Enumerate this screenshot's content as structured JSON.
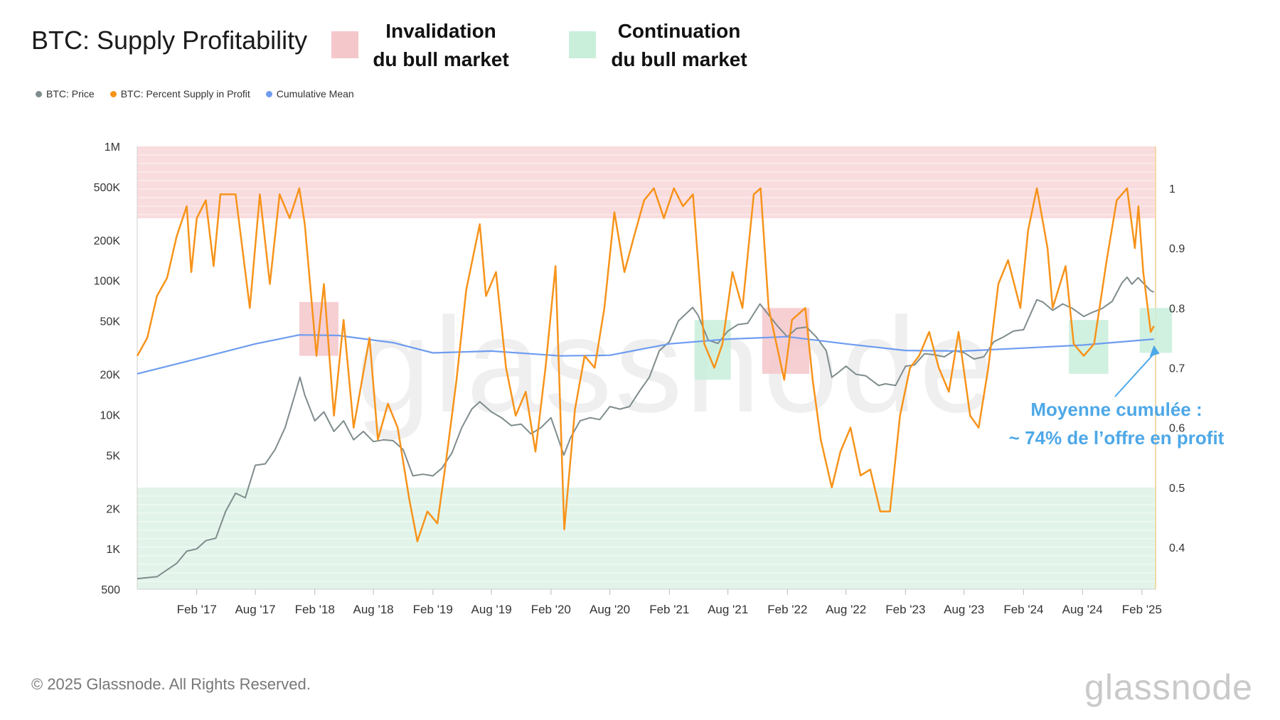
{
  "title": "BTC: Supply Profitability",
  "key": {
    "invalidation_line1": "Invalidation",
    "invalidation_line2": "du bull market",
    "invalidation_color": "#f4c7cb",
    "continuation_line1": "Continuation",
    "continuation_line2": "du bull market",
    "continuation_color": "#c9efdb"
  },
  "legend": [
    {
      "label": "BTC: Price",
      "color": "#7f8c8d"
    },
    {
      "label": "BTC: Percent Supply in Profit",
      "color": "#f7931a"
    },
    {
      "label": "Cumulative Mean",
      "color": "#6e9cf0"
    }
  ],
  "annotation": {
    "line1": "Moyenne cumulée :",
    "line2": "~ 74% de l’offre en profit"
  },
  "footer": "© 2025 Glassnode. All Rights Reserved.",
  "brand": "glassnode",
  "chart_data": {
    "type": "line",
    "x_range": [
      "2016-08-01",
      "2025-03-15"
    ],
    "x_ticks": [
      "Feb '17",
      "Aug '17",
      "Feb '18",
      "Aug '18",
      "Feb '19",
      "Aug '19",
      "Feb '20",
      "Aug '20",
      "Feb '21",
      "Aug '21",
      "Feb '22",
      "Aug '22",
      "Feb '23",
      "Aug '23",
      "Feb '24",
      "Aug '24",
      "Feb '25"
    ],
    "x_tick_dates": [
      "2017-02-01",
      "2017-08-01",
      "2018-02-01",
      "2018-08-01",
      "2019-02-01",
      "2019-08-01",
      "2020-02-01",
      "2020-08-01",
      "2021-02-01",
      "2021-08-01",
      "2022-02-01",
      "2022-08-01",
      "2023-02-01",
      "2023-08-01",
      "2024-02-01",
      "2024-08-01",
      "2025-02-01"
    ],
    "y_left": {
      "scale": "log",
      "range": [
        500,
        1000000
      ],
      "ticks": [
        500,
        1000,
        2000,
        5000,
        10000,
        20000,
        50000,
        100000,
        200000,
        500000,
        1000000
      ],
      "tick_labels": [
        "500",
        "1K",
        "2K",
        "5K",
        "10K",
        "20K",
        "50K",
        "100K",
        "200K",
        "500K",
        "1M"
      ]
    },
    "y_right": {
      "scale": "linear",
      "range": [
        0.33,
        1.07
      ],
      "ticks": [
        0.4,
        0.5,
        0.6,
        0.7,
        0.8,
        0.9,
        1
      ],
      "tick_labels": [
        "0.4",
        "0.5",
        "0.6",
        "0.7",
        "0.8",
        "0.9",
        "1"
      ]
    },
    "bands": [
      {
        "axis": "right",
        "from": 0.95,
        "to": 1.07,
        "color": "#f9dcde"
      },
      {
        "axis": "right",
        "from": 0.33,
        "to": 0.5,
        "color": "#e2f4ea"
      }
    ],
    "highlight_boxes": [
      {
        "kind": "invalidation",
        "x_from": "2017-12-15",
        "x_to": "2018-04-15",
        "y_from": 0.72,
        "y_to": 0.81
      },
      {
        "kind": "continuation",
        "x_from": "2021-04-20",
        "x_to": "2021-08-10",
        "y_from": 0.68,
        "y_to": 0.78
      },
      {
        "kind": "invalidation",
        "x_from": "2021-11-15",
        "x_to": "2022-04-10",
        "y_from": 0.69,
        "y_to": 0.8
      },
      {
        "kind": "continuation",
        "x_from": "2024-06-20",
        "x_to": "2024-10-20",
        "y_from": 0.69,
        "y_to": 0.78
      },
      {
        "kind": "continuation",
        "x_from": "2025-01-25",
        "x_to": "2025-05-05",
        "y_from": 0.725,
        "y_to": 0.8
      }
    ],
    "series": [
      {
        "name": "BTC: Price",
        "axis": "left",
        "color": "#7f8c8d",
        "points": [
          [
            "2016-08-01",
            600
          ],
          [
            "2016-10-01",
            620
          ],
          [
            "2016-12-01",
            780
          ],
          [
            "2017-01-01",
            960
          ],
          [
            "2017-02-01",
            1000
          ],
          [
            "2017-03-01",
            1150
          ],
          [
            "2017-04-01",
            1200
          ],
          [
            "2017-05-01",
            1900
          ],
          [
            "2017-06-01",
            2600
          ],
          [
            "2017-07-01",
            2400
          ],
          [
            "2017-08-01",
            4200
          ],
          [
            "2017-09-01",
            4300
          ],
          [
            "2017-10-01",
            5500
          ],
          [
            "2017-11-01",
            8000
          ],
          [
            "2017-12-01",
            14000
          ],
          [
            "2017-12-17",
            19000
          ],
          [
            "2018-01-01",
            14000
          ],
          [
            "2018-02-01",
            9000
          ],
          [
            "2018-03-01",
            10500
          ],
          [
            "2018-04-01",
            7500
          ],
          [
            "2018-05-01",
            9000
          ],
          [
            "2018-06-01",
            6500
          ],
          [
            "2018-07-01",
            7500
          ],
          [
            "2018-08-01",
            6300
          ],
          [
            "2018-09-01",
            6500
          ],
          [
            "2018-10-01",
            6400
          ],
          [
            "2018-11-01",
            5500
          ],
          [
            "2018-12-01",
            3500
          ],
          [
            "2019-01-01",
            3600
          ],
          [
            "2019-02-01",
            3500
          ],
          [
            "2019-03-01",
            4000
          ],
          [
            "2019-04-01",
            5200
          ],
          [
            "2019-05-01",
            8000
          ],
          [
            "2019-06-01",
            11000
          ],
          [
            "2019-06-26",
            12500
          ],
          [
            "2019-08-01",
            10500
          ],
          [
            "2019-09-01",
            9500
          ],
          [
            "2019-10-01",
            8300
          ],
          [
            "2019-11-01",
            8500
          ],
          [
            "2019-12-01",
            7200
          ],
          [
            "2020-01-01",
            8000
          ],
          [
            "2020-02-01",
            9500
          ],
          [
            "2020-03-12",
            5000
          ],
          [
            "2020-04-01",
            6700
          ],
          [
            "2020-05-01",
            9000
          ],
          [
            "2020-06-01",
            9500
          ],
          [
            "2020-07-01",
            9200
          ],
          [
            "2020-08-01",
            11500
          ],
          [
            "2020-09-01",
            11000
          ],
          [
            "2020-10-01",
            11500
          ],
          [
            "2020-11-01",
            15000
          ],
          [
            "2020-12-01",
            19000
          ],
          [
            "2021-01-01",
            30000
          ],
          [
            "2021-02-01",
            35000
          ],
          [
            "2021-03-01",
            50000
          ],
          [
            "2021-04-14",
            63000
          ],
          [
            "2021-05-01",
            55000
          ],
          [
            "2021-06-01",
            36000
          ],
          [
            "2021-07-01",
            34000
          ],
          [
            "2021-08-01",
            42000
          ],
          [
            "2021-09-01",
            47000
          ],
          [
            "2021-10-01",
            48000
          ],
          [
            "2021-11-08",
            67000
          ],
          [
            "2021-12-01",
            57000
          ],
          [
            "2022-01-01",
            46000
          ],
          [
            "2022-02-01",
            38000
          ],
          [
            "2022-03-01",
            44000
          ],
          [
            "2022-04-01",
            45000
          ],
          [
            "2022-05-01",
            38000
          ],
          [
            "2022-06-01",
            30000
          ],
          [
            "2022-06-18",
            19000
          ],
          [
            "2022-07-01",
            20000
          ],
          [
            "2022-08-01",
            23000
          ],
          [
            "2022-09-01",
            20000
          ],
          [
            "2022-10-01",
            19500
          ],
          [
            "2022-11-10",
            16500
          ],
          [
            "2022-12-01",
            17000
          ],
          [
            "2023-01-01",
            16500
          ],
          [
            "2023-02-01",
            23000
          ],
          [
            "2023-03-01",
            23500
          ],
          [
            "2023-04-01",
            28500
          ],
          [
            "2023-05-01",
            28000
          ],
          [
            "2023-06-01",
            27000
          ],
          [
            "2023-07-01",
            30000
          ],
          [
            "2023-08-01",
            29000
          ],
          [
            "2023-09-01",
            26000
          ],
          [
            "2023-10-01",
            27000
          ],
          [
            "2023-11-01",
            35000
          ],
          [
            "2023-12-01",
            38000
          ],
          [
            "2024-01-01",
            42000
          ],
          [
            "2024-02-01",
            43000
          ],
          [
            "2024-03-13",
            72000
          ],
          [
            "2024-04-01",
            69000
          ],
          [
            "2024-05-01",
            60000
          ],
          [
            "2024-06-01",
            67000
          ],
          [
            "2024-07-01",
            62000
          ],
          [
            "2024-08-05",
            54000
          ],
          [
            "2024-09-01",
            58000
          ],
          [
            "2024-10-01",
            62000
          ],
          [
            "2024-11-01",
            70000
          ],
          [
            "2024-12-01",
            96000
          ],
          [
            "2024-12-17",
            106000
          ],
          [
            "2025-01-01",
            94000
          ],
          [
            "2025-01-20",
            105000
          ],
          [
            "2025-02-01",
            98000
          ],
          [
            "2025-02-28",
            84000
          ],
          [
            "2025-03-10",
            82000
          ]
        ]
      },
      {
        "name": "BTC: Percent Supply in Profit",
        "axis": "right",
        "color": "#f7931a",
        "points": [
          [
            "2016-08-01",
            0.72
          ],
          [
            "2016-09-01",
            0.75
          ],
          [
            "2016-10-01",
            0.82
          ],
          [
            "2016-11-01",
            0.85
          ],
          [
            "2016-12-01",
            0.92
          ],
          [
            "2017-01-01",
            0.97
          ],
          [
            "2017-01-15",
            0.86
          ],
          [
            "2017-02-01",
            0.95
          ],
          [
            "2017-03-01",
            0.98
          ],
          [
            "2017-03-25",
            0.87
          ],
          [
            "2017-04-15",
            0.99
          ],
          [
            "2017-06-01",
            0.99
          ],
          [
            "2017-07-15",
            0.8
          ],
          [
            "2017-08-15",
            0.99
          ],
          [
            "2017-09-15",
            0.84
          ],
          [
            "2017-10-15",
            0.99
          ],
          [
            "2017-11-15",
            0.95
          ],
          [
            "2017-12-15",
            1.0
          ],
          [
            "2018-01-01",
            0.94
          ],
          [
            "2018-02-06",
            0.72
          ],
          [
            "2018-03-01",
            0.84
          ],
          [
            "2018-04-01",
            0.62
          ],
          [
            "2018-05-01",
            0.78
          ],
          [
            "2018-06-01",
            0.6
          ],
          [
            "2018-07-20",
            0.75
          ],
          [
            "2018-08-15",
            0.58
          ],
          [
            "2018-09-15",
            0.64
          ],
          [
            "2018-10-15",
            0.6
          ],
          [
            "2018-11-20",
            0.48
          ],
          [
            "2018-12-15",
            0.41
          ],
          [
            "2019-01-15",
            0.46
          ],
          [
            "2019-02-15",
            0.44
          ],
          [
            "2019-03-15",
            0.55
          ],
          [
            "2019-04-15",
            0.68
          ],
          [
            "2019-05-15",
            0.83
          ],
          [
            "2019-06-26",
            0.94
          ],
          [
            "2019-07-15",
            0.82
          ],
          [
            "2019-08-15",
            0.86
          ],
          [
            "2019-09-15",
            0.7
          ],
          [
            "2019-10-15",
            0.62
          ],
          [
            "2019-11-15",
            0.66
          ],
          [
            "2019-12-15",
            0.56
          ],
          [
            "2020-01-15",
            0.7
          ],
          [
            "2020-02-15",
            0.87
          ],
          [
            "2020-03-13",
            0.43
          ],
          [
            "2020-04-15",
            0.63
          ],
          [
            "2020-05-15",
            0.72
          ],
          [
            "2020-06-15",
            0.7
          ],
          [
            "2020-07-15",
            0.8
          ],
          [
            "2020-08-15",
            0.96
          ],
          [
            "2020-09-15",
            0.86
          ],
          [
            "2020-10-15",
            0.92
          ],
          [
            "2020-11-15",
            0.98
          ],
          [
            "2020-12-15",
            1.0
          ],
          [
            "2021-01-15",
            0.95
          ],
          [
            "2021-02-15",
            1.0
          ],
          [
            "2021-03-15",
            0.97
          ],
          [
            "2021-04-15",
            0.99
          ],
          [
            "2021-05-20",
            0.74
          ],
          [
            "2021-06-20",
            0.7
          ],
          [
            "2021-07-15",
            0.74
          ],
          [
            "2021-08-15",
            0.86
          ],
          [
            "2021-09-15",
            0.8
          ],
          [
            "2021-10-20",
            0.99
          ],
          [
            "2021-11-10",
            1.0
          ],
          [
            "2021-12-05",
            0.8
          ],
          [
            "2022-01-22",
            0.68
          ],
          [
            "2022-02-15",
            0.78
          ],
          [
            "2022-03-28",
            0.8
          ],
          [
            "2022-04-20",
            0.68
          ],
          [
            "2022-05-15",
            0.58
          ],
          [
            "2022-06-18",
            0.5
          ],
          [
            "2022-07-15",
            0.56
          ],
          [
            "2022-08-15",
            0.6
          ],
          [
            "2022-09-15",
            0.52
          ],
          [
            "2022-10-15",
            0.53
          ],
          [
            "2022-11-15",
            0.46
          ],
          [
            "2022-12-15",
            0.46
          ],
          [
            "2023-01-15",
            0.62
          ],
          [
            "2023-02-15",
            0.7
          ],
          [
            "2023-03-15",
            0.72
          ],
          [
            "2023-04-15",
            0.76
          ],
          [
            "2023-05-15",
            0.7
          ],
          [
            "2023-06-15",
            0.66
          ],
          [
            "2023-07-15",
            0.76
          ],
          [
            "2023-08-20",
            0.62
          ],
          [
            "2023-09-15",
            0.6
          ],
          [
            "2023-10-15",
            0.7
          ],
          [
            "2023-11-15",
            0.84
          ],
          [
            "2023-12-15",
            0.88
          ],
          [
            "2024-01-22",
            0.8
          ],
          [
            "2024-02-15",
            0.93
          ],
          [
            "2024-03-13",
            1.0
          ],
          [
            "2024-04-15",
            0.9
          ],
          [
            "2024-05-01",
            0.8
          ],
          [
            "2024-06-10",
            0.87
          ],
          [
            "2024-07-05",
            0.74
          ],
          [
            "2024-08-05",
            0.72
          ],
          [
            "2024-09-06",
            0.74
          ],
          [
            "2024-10-15",
            0.88
          ],
          [
            "2024-11-15",
            0.98
          ],
          [
            "2024-12-17",
            1.0
          ],
          [
            "2025-01-10",
            0.9
          ],
          [
            "2025-01-21",
            0.97
          ],
          [
            "2025-02-05",
            0.86
          ],
          [
            "2025-02-28",
            0.76
          ],
          [
            "2025-03-10",
            0.77
          ]
        ]
      },
      {
        "name": "Cumulative Mean",
        "axis": "right",
        "color": "#6e9cf0",
        "points": [
          [
            "2016-08-01",
            0.69
          ],
          [
            "2017-02-01",
            0.715
          ],
          [
            "2017-08-01",
            0.74
          ],
          [
            "2017-12-15",
            0.755
          ],
          [
            "2018-04-15",
            0.754
          ],
          [
            "2018-10-01",
            0.742
          ],
          [
            "2019-02-01",
            0.725
          ],
          [
            "2019-08-01",
            0.728
          ],
          [
            "2020-03-01",
            0.72
          ],
          [
            "2020-08-01",
            0.721
          ],
          [
            "2021-02-01",
            0.74
          ],
          [
            "2021-08-01",
            0.748
          ],
          [
            "2022-02-01",
            0.752
          ],
          [
            "2022-08-01",
            0.74
          ],
          [
            "2023-02-01",
            0.729
          ],
          [
            "2023-08-01",
            0.728
          ],
          [
            "2024-02-01",
            0.733
          ],
          [
            "2024-08-01",
            0.738
          ],
          [
            "2025-03-10",
            0.748
          ]
        ]
      }
    ]
  }
}
